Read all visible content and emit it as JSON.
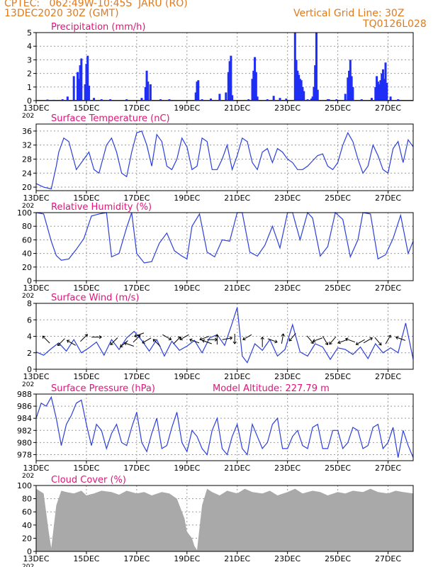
{
  "header": {
    "line1": "CPTEC:   062:49W-10:45S  JARU (RO)",
    "line2": "13DEC2020 30Z (GMT)",
    "grid_note": "Vertical Grid Line: 30Z",
    "run_id": "TQ0126L028"
  },
  "colors": {
    "header": "#e07a1f",
    "title": "#e0147a",
    "line": "#2b3fdc",
    "bar": "#1f2ef5",
    "cloud": "#a9a9a9",
    "grid": "#9a9a9a"
  },
  "x_axis": {
    "tick_labels": [
      "13DEC",
      "15DEC",
      "17DEC",
      "19DEC",
      "21DEC",
      "23DEC",
      "25DEC",
      "27DEC"
    ],
    "tick_days": [
      0,
      2,
      4,
      6,
      8,
      10,
      12,
      14
    ],
    "range_days": [
      0,
      15
    ],
    "year_fragment": "202"
  },
  "chart_data": [
    {
      "id": "precip",
      "type": "bar",
      "title": "Precipitation (mm/h)",
      "ylim": [
        0,
        5
      ],
      "yticks": [
        0,
        1,
        2,
        3,
        4,
        5
      ],
      "x_days": [
        0.2,
        0.45,
        0.7,
        1.05,
        1.25,
        1.5,
        1.65,
        1.7,
        1.75,
        1.8,
        1.95,
        2.0,
        2.05,
        2.1,
        2.3,
        2.6,
        2.95,
        3.2,
        3.6,
        4.2,
        4.35,
        4.4,
        4.45,
        4.55,
        4.95,
        5.3,
        6.35,
        6.4,
        6.45,
        6.6,
        6.95,
        7.3,
        7.55,
        7.65,
        7.7,
        7.75,
        7.8,
        8.45,
        8.6,
        8.65,
        8.7,
        8.75,
        8.8,
        9.2,
        9.45,
        9.7,
        9.95,
        10.3,
        10.35,
        10.4,
        10.45,
        10.5,
        10.55,
        10.6,
        10.65,
        10.8,
        10.95,
        11.0,
        11.05,
        11.1,
        11.15,
        11.2,
        11.6,
        11.65,
        11.8,
        11.95,
        12.3,
        12.4,
        12.45,
        12.5,
        12.55,
        12.6,
        12.95,
        13.35,
        13.5,
        13.55,
        13.6,
        13.65,
        13.7,
        13.75,
        13.8,
        13.85,
        13.9,
        13.95,
        14.1,
        14.4
      ],
      "values": [
        0.05,
        0.08,
        0.06,
        0.1,
        0.3,
        1.8,
        2.1,
        1.6,
        2.6,
        3.1,
        1.2,
        2.7,
        3.3,
        1.1,
        0.2,
        0.1,
        0.1,
        0.05,
        0.1,
        0.2,
        1.0,
        2.2,
        1.4,
        1.2,
        0.1,
        0.1,
        0.6,
        1.4,
        1.5,
        0.1,
        0.15,
        0.5,
        0.6,
        2.1,
        2.9,
        3.3,
        0.4,
        0.1,
        1.6,
        2.2,
        3.2,
        2.1,
        0.3,
        0.1,
        0.35,
        0.2,
        0.15,
        5.0,
        3.0,
        2.2,
        1.9,
        1.6,
        1.5,
        1.0,
        0.7,
        0.1,
        0.15,
        0.3,
        1.0,
        2.6,
        5.0,
        0.8,
        0.1,
        0.1,
        0.05,
        0.1,
        0.5,
        1.7,
        2.2,
        3.0,
        1.8,
        1.0,
        0.1,
        0.2,
        1.0,
        1.8,
        1.4,
        1.2,
        1.5,
        2.0,
        2.3,
        1.6,
        2.8,
        1.3,
        0.3,
        0.1
      ]
    },
    {
      "id": "temp",
      "type": "line",
      "title": "Surface Temperature (nC)",
      "ylim": [
        19,
        38
      ],
      "yticks": [
        20,
        24,
        28,
        32,
        36
      ],
      "x_days": [
        0,
        0.3,
        0.6,
        0.8,
        0.9,
        1.1,
        1.3,
        1.6,
        1.9,
        2.1,
        2.3,
        2.5,
        2.8,
        3.0,
        3.2,
        3.4,
        3.6,
        3.8,
        4.0,
        4.2,
        4.4,
        4.6,
        4.8,
        5.0,
        5.2,
        5.4,
        5.6,
        5.8,
        6.0,
        6.2,
        6.4,
        6.6,
        6.8,
        7.0,
        7.2,
        7.4,
        7.6,
        7.8,
        8.0,
        8.2,
        8.4,
        8.6,
        8.8,
        9.0,
        9.2,
        9.4,
        9.6,
        9.8,
        10.0,
        10.2,
        10.4,
        10.6,
        10.8,
        11.0,
        11.2,
        11.4,
        11.6,
        11.8,
        12.0,
        12.2,
        12.4,
        12.6,
        12.8,
        13.0,
        13.2,
        13.4,
        13.6,
        13.8,
        14.0,
        14.2,
        14.4,
        14.6,
        14.8,
        15.0
      ],
      "values": [
        21,
        20,
        19.5,
        26,
        30,
        34,
        33,
        25,
        28,
        30,
        25,
        24,
        32,
        34,
        30,
        24,
        23,
        30,
        35.5,
        36,
        32,
        26,
        35,
        33,
        26,
        25,
        28,
        34,
        31.5,
        25,
        26,
        34,
        33,
        25,
        25,
        28,
        32,
        25,
        29,
        34,
        33,
        27,
        25,
        30,
        31,
        27,
        31,
        30,
        28,
        27,
        25,
        25,
        26,
        27.5,
        29,
        29.5,
        26,
        25,
        27,
        32,
        35.5,
        33,
        28,
        24,
        26,
        32,
        29,
        25,
        24,
        31,
        33,
        27,
        33.5,
        31.5
      ]
    },
    {
      "id": "rh",
      "type": "line",
      "title": "Relative Humidity (%)",
      "ylim": [
        0,
        100
      ],
      "yticks": [
        0,
        20,
        40,
        60,
        80,
        100
      ],
      "x_days": [
        0,
        0.3,
        0.6,
        0.8,
        1.0,
        1.3,
        1.6,
        1.9,
        2.2,
        2.5,
        2.8,
        3.0,
        3.3,
        3.6,
        3.8,
        4.0,
        4.3,
        4.6,
        4.9,
        5.2,
        5.5,
        5.8,
        6.0,
        6.2,
        6.5,
        6.8,
        7.1,
        7.4,
        7.7,
        8.0,
        8.2,
        8.5,
        8.8,
        9.1,
        9.4,
        9.7,
        10.0,
        10.2,
        10.5,
        10.8,
        11.0,
        11.3,
        11.6,
        11.9,
        12.2,
        12.5,
        12.8,
        13.0,
        13.3,
        13.6,
        13.9,
        14.2,
        14.5,
        14.8,
        15.0
      ],
      "values": [
        100,
        98,
        58,
        37,
        30,
        32,
        46,
        62,
        95,
        98,
        100,
        35,
        40,
        78,
        100,
        40,
        26,
        28,
        55,
        70,
        44,
        36,
        32,
        80,
        98,
        42,
        35,
        60,
        58,
        100,
        100,
        42,
        36,
        52,
        80,
        48,
        100,
        100,
        60,
        100,
        92,
        36,
        50,
        100,
        90,
        35,
        60,
        100,
        98,
        32,
        38,
        62,
        96,
        40,
        58
      ]
    },
    {
      "id": "wind",
      "type": "line",
      "title": "Surface Wind (m/s)",
      "ylim": [
        0,
        8
      ],
      "yticks": [
        0,
        2,
        4,
        6,
        8
      ],
      "x_days": [
        0,
        0.3,
        0.6,
        0.9,
        1.2,
        1.5,
        1.8,
        2.1,
        2.4,
        2.7,
        3.0,
        3.3,
        3.6,
        3.9,
        4.2,
        4.5,
        4.8,
        5.1,
        5.4,
        5.7,
        6.0,
        6.3,
        6.6,
        6.9,
        7.2,
        7.5,
        7.8,
        8.0,
        8.2,
        8.4,
        8.7,
        9.0,
        9.3,
        9.6,
        9.9,
        10.2,
        10.5,
        10.8,
        11.1,
        11.4,
        11.7,
        12.0,
        12.3,
        12.6,
        12.9,
        13.2,
        13.5,
        13.8,
        14.1,
        14.4,
        14.7,
        15.0
      ],
      "values": [
        2.1,
        1.7,
        2.5,
        3.2,
        2.2,
        3.6,
        2.0,
        2.6,
        3.3,
        1.7,
        3.6,
        2.4,
        3.8,
        4.6,
        3.5,
        2.2,
        3.6,
        1.6,
        3.4,
        2.3,
        2.8,
        3.5,
        2.0,
        3.8,
        4.2,
        2.9,
        5.6,
        7.5,
        1.6,
        0.8,
        3.1,
        2.3,
        3.6,
        1.6,
        2.4,
        5.4,
        2.1,
        1.6,
        3.1,
        2.7,
        1.2,
        2.6,
        2.4,
        1.8,
        2.7,
        1.3,
        3.1,
        2.0,
        2.6,
        2.0,
        5.6,
        1.2
      ],
      "arrow_days": [
        0.4,
        1.0,
        1.4,
        1.9,
        2.4,
        3.1,
        3.5,
        3.7,
        4.0,
        4.1,
        4.4,
        4.8,
        5.2,
        5.6,
        5.9,
        6.3,
        6.7,
        6.8,
        7.0,
        7.2,
        7.6,
        7.9,
        8.4,
        9.0,
        9.4,
        9.8,
        10.2,
        10.9,
        11.2,
        11.5,
        11.8,
        12.2,
        12.5,
        12.9,
        13.2,
        13.6,
        14.0,
        14.5
      ],
      "arrow_speed": [
        3.6,
        3.3,
        3.2,
        3.8,
        3.9,
        3.4,
        3.1,
        3.0,
        3.7,
        4.2,
        3.5,
        3.2,
        3.9,
        3.5,
        3.9,
        3.4,
        3.8,
        3.3,
        3.6,
        3.6,
        3.7,
        3.7,
        3.9,
        3.3,
        3.5,
        3.7,
        3.9,
        3.6,
        3.6,
        3.5,
        3.5,
        3.4,
        3.5,
        3.3,
        3.5,
        3.4,
        3.6,
        3.7
      ],
      "arrow_dir_deg": [
        225,
        135,
        210,
        315,
        0,
        135,
        140,
        200,
        315,
        160,
        150,
        225,
        30,
        315,
        150,
        200,
        160,
        200,
        0,
        270,
        350,
        90,
        150,
        270,
        20,
        280,
        130,
        50,
        160,
        60,
        130,
        160,
        200,
        150,
        330,
        50,
        300,
        200
      ]
    },
    {
      "id": "pressure",
      "type": "line",
      "title": "Surface Pressure (hPa)",
      "annotation": "Model Altitude: 227.79 m",
      "ylim": [
        977,
        988
      ],
      "yticks": [
        978,
        980,
        982,
        984,
        986,
        988
      ],
      "x_days": [
        0,
        0.2,
        0.4,
        0.6,
        0.8,
        1.0,
        1.2,
        1.4,
        1.6,
        1.8,
        2.0,
        2.2,
        2.4,
        2.6,
        2.8,
        3.0,
        3.2,
        3.4,
        3.6,
        3.8,
        4.0,
        4.2,
        4.4,
        4.6,
        4.8,
        5.0,
        5.2,
        5.4,
        5.6,
        5.8,
        6.0,
        6.2,
        6.4,
        6.6,
        6.8,
        7.0,
        7.2,
        7.4,
        7.6,
        7.8,
        8.0,
        8.2,
        8.4,
        8.6,
        8.8,
        9.0,
        9.2,
        9.4,
        9.6,
        9.8,
        10.0,
        10.2,
        10.4,
        10.6,
        10.8,
        11.0,
        11.2,
        11.4,
        11.6,
        11.8,
        12.0,
        12.2,
        12.4,
        12.6,
        12.8,
        13.0,
        13.2,
        13.4,
        13.6,
        13.8,
        14.0,
        14.2,
        14.4,
        14.6,
        14.8,
        15.0
      ],
      "values": [
        984,
        986.5,
        986,
        987.5,
        984,
        979.5,
        983,
        984.5,
        986.5,
        987,
        983,
        979.5,
        983,
        982,
        979,
        981.5,
        983,
        980,
        979.5,
        982.5,
        985,
        980,
        978.5,
        981.5,
        984,
        979,
        979.5,
        982.5,
        985,
        980,
        978.5,
        982,
        981,
        979,
        978,
        982,
        984,
        979,
        978,
        981,
        983,
        979,
        978,
        983,
        981,
        979,
        980,
        983,
        984,
        979,
        979,
        981,
        982,
        979.5,
        979,
        982.5,
        983,
        979,
        979,
        982,
        982,
        979,
        980,
        982.5,
        982,
        979,
        979.5,
        982.5,
        983,
        979,
        980,
        982.5,
        977.5,
        982,
        979.5,
        977.5
      ]
    },
    {
      "id": "cloud",
      "type": "area",
      "title": "Cloud Cover (%)",
      "ylim": [
        0,
        100
      ],
      "yticks": [
        0,
        20,
        40,
        60,
        80,
        100
      ],
      "x_days": [
        0,
        0.3,
        0.5,
        0.6,
        0.8,
        1.0,
        1.2,
        1.5,
        1.8,
        2.0,
        2.3,
        2.6,
        3.0,
        3.3,
        3.6,
        4.0,
        4.3,
        4.6,
        5.0,
        5.3,
        5.6,
        5.9,
        6.0,
        6.2,
        6.3,
        6.4,
        6.6,
        6.8,
        7.0,
        7.3,
        7.6,
        8.0,
        8.3,
        8.6,
        9.0,
        9.3,
        9.6,
        10.0,
        10.3,
        10.6,
        11.0,
        11.3,
        11.6,
        12.0,
        12.3,
        12.6,
        13.0,
        13.3,
        13.6,
        14.0,
        14.3,
        14.6,
        15.0
      ],
      "values": [
        95,
        88,
        30,
        5,
        70,
        92,
        90,
        88,
        92,
        85,
        88,
        92,
        90,
        86,
        92,
        88,
        90,
        85,
        90,
        88,
        80,
        50,
        30,
        20,
        8,
        2,
        70,
        95,
        90,
        85,
        92,
        88,
        95,
        90,
        88,
        92,
        85,
        90,
        95,
        88,
        92,
        90,
        85,
        90,
        88,
        92,
        90,
        95,
        90,
        88,
        92,
        90,
        88
      ]
    }
  ]
}
